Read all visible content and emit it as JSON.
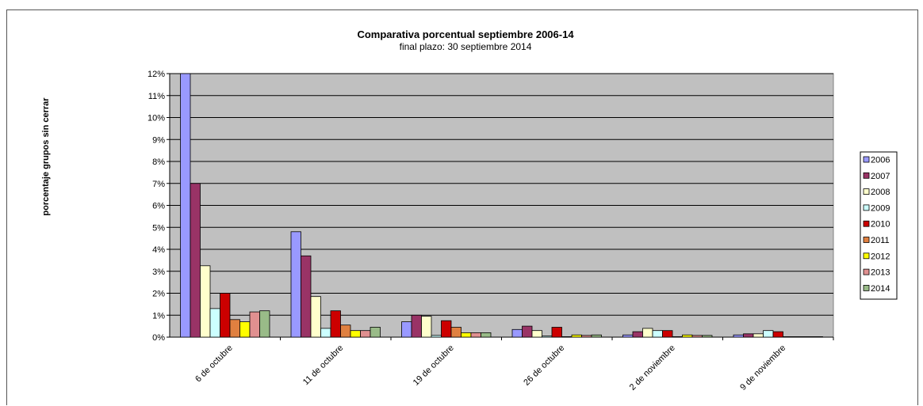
{
  "chart_data": {
    "type": "bar",
    "title": "Comparativa porcentual septiembre 2006-14",
    "subtitle": "final plazo: 30 septiembre 2014",
    "xlabel": "",
    "ylabel": "porcentaje grupos sin cerrar",
    "categories": [
      "6 de octubre",
      "11 de octubre",
      "19 de octubre",
      "26 de octubre",
      "2 de noviembre",
      "9 de noviembre"
    ],
    "ylim": [
      0,
      12
    ],
    "yticks": [
      "0%",
      "1%",
      "2%",
      "3%",
      "4%",
      "5%",
      "6%",
      "7%",
      "8%",
      "9%",
      "10%",
      "11%",
      "12%"
    ],
    "plot_background": "#c0c0c0",
    "grid": true,
    "legend_position": "right",
    "series": [
      {
        "name": "2006",
        "color": "#9999ff",
        "values": [
          12.0,
          4.8,
          0.7,
          0.35,
          0.1,
          0.1
        ]
      },
      {
        "name": "2007",
        "color": "#993366",
        "values": [
          7.0,
          3.7,
          1.0,
          0.5,
          0.25,
          0.15
        ]
      },
      {
        "name": "2008",
        "color": "#ffffcc",
        "values": [
          3.25,
          1.85,
          0.95,
          0.3,
          0.4,
          0.15
        ]
      },
      {
        "name": "2009",
        "color": "#ccffff",
        "values": [
          1.3,
          0.4,
          0.08,
          0.05,
          0.3,
          0.3
        ]
      },
      {
        "name": "2010",
        "color": "#cc0000",
        "values": [
          2.0,
          1.2,
          0.75,
          0.45,
          0.3,
          0.25
        ]
      },
      {
        "name": "2011",
        "color": "#e08040",
        "values": [
          0.8,
          0.55,
          0.45,
          0.02,
          0.02,
          0.02
        ]
      },
      {
        "name": "2012",
        "color": "#ffff00",
        "values": [
          0.7,
          0.3,
          0.2,
          0.1,
          0.1,
          0.02
        ]
      },
      {
        "name": "2013",
        "color": "#e09090",
        "values": [
          1.15,
          0.3,
          0.2,
          0.08,
          0.08,
          0.02
        ]
      },
      {
        "name": "2014",
        "color": "#99bb88",
        "values": [
          1.2,
          0.45,
          0.2,
          0.1,
          0.08,
          0.02
        ]
      }
    ]
  }
}
